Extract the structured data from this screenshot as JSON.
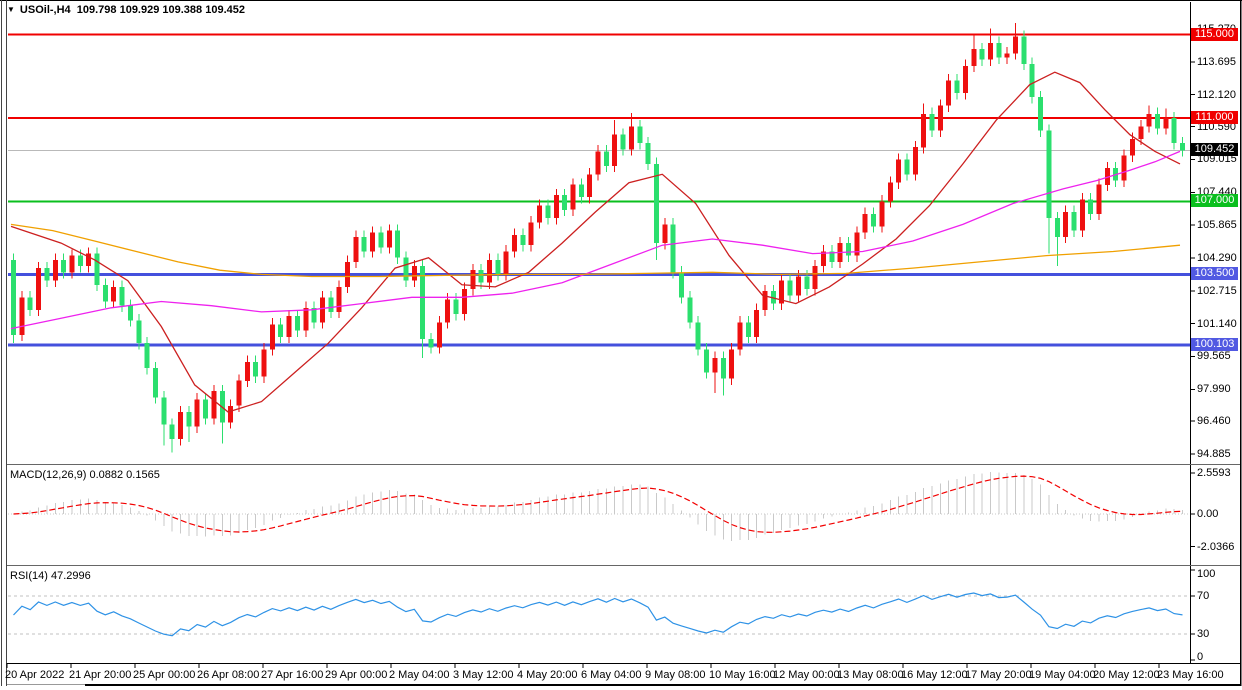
{
  "header": {
    "glyph": "▼",
    "text": "USOil-,H4  109.798 109.929 109.388 109.452"
  },
  "indicators": {
    "macd_label": "MACD(12,26,9) 0.0882 0.1565",
    "rsi_label": "RSI(14) 47.2996"
  },
  "price_axis": {
    "ticks": [
      {
        "label": "115.270",
        "value": 115.27
      },
      {
        "label": "113.695",
        "value": 113.695
      },
      {
        "label": "112.120",
        "value": 112.12
      },
      {
        "label": "110.590",
        "value": 110.59
      },
      {
        "label": "109.015",
        "value": 109.015
      },
      {
        "label": "107.440",
        "value": 107.44
      },
      {
        "label": "105.865",
        "value": 105.865
      },
      {
        "label": "104.290",
        "value": 104.29
      },
      {
        "label": "102.715",
        "value": 102.715
      },
      {
        "label": "101.140",
        "value": 101.14
      },
      {
        "label": "99.565",
        "value": 99.565
      },
      {
        "label": "97.990",
        "value": 97.99
      },
      {
        "label": "96.460",
        "value": 96.46
      },
      {
        "label": "94.885",
        "value": 94.885
      }
    ],
    "badges": [
      {
        "label": "115.000",
        "price": 115.0,
        "bg": "#F00000"
      },
      {
        "label": "111.000",
        "price": 111.0,
        "bg": "#F00000"
      },
      {
        "label": "109.452",
        "price": 109.452,
        "bg": "#000000"
      },
      {
        "label": "107.000",
        "price": 107.0,
        "bg": "#0ABF1E"
      },
      {
        "label": "103.500",
        "price": 103.5,
        "bg": "#5159E2"
      },
      {
        "label": "100.103",
        "price": 100.103,
        "bg": "#5159E2"
      }
    ]
  },
  "macd_axis": {
    "ticks": [
      {
        "label": "2.5593",
        "value": 2.5593
      },
      {
        "label": "0.00",
        "value": 0
      },
      {
        "label": "-2.0366",
        "value": -2.0366
      }
    ]
  },
  "rsi_axis": {
    "ticks": [
      {
        "label": "100",
        "value": 100
      },
      {
        "label": "70",
        "value": 70
      },
      {
        "label": "30",
        "value": 30
      },
      {
        "label": "0",
        "value": 0
      }
    ]
  },
  "time_axis": {
    "labels": [
      "20 Apr 2022",
      "21 Apr 20:00",
      "25 Apr 00:00",
      "26 Apr 08:00",
      "27 Apr 16:00",
      "29 Apr 00:00",
      "2 May 04:00",
      "3 May 12:00",
      "4 May 20:00",
      "6 May 04:00",
      "9 May 08:00",
      "10 May 16:00",
      "12 May 00:00",
      "13 May 08:00",
      "16 May 12:00",
      "17 May 20:00",
      "19 May 04:00",
      "20 May 12:00",
      "23 May 16:00"
    ]
  },
  "chart_data": {
    "type": "candlestick",
    "symbol": "USOil-",
    "period": "H4",
    "title": "USOil-,H4",
    "ohlc_display": {
      "open": 109.798,
      "high": 109.929,
      "low": 109.388,
      "close": 109.452
    },
    "current_price": 109.452,
    "ylim": [
      94.885,
      115.27
    ],
    "grid": false,
    "colors": {
      "up_candle": "#EE1010",
      "down_candle": "#2BDF6E",
      "ma_fast": "#CC2020",
      "ma_mid": "#EE22EE",
      "ma_slow": "#F0A000",
      "level_red": "#F00000",
      "level_green": "#0ABF1E",
      "level_blue": "#4450DD",
      "current_line": "#B9B9B9",
      "macd_bar": "#C9C9C9",
      "macd_signal": "#F20000",
      "rsi_line": "#2E92E6"
    },
    "hlines": [
      {
        "price": 115.0,
        "color": "#F00000",
        "w": 2
      },
      {
        "price": 111.0,
        "color": "#F00000",
        "w": 2
      },
      {
        "price": 107.0,
        "color": "#0ABF1E",
        "w": 2
      },
      {
        "price": 103.5,
        "color": "#4450DD",
        "w": 3
      },
      {
        "price": 100.103,
        "color": "#4450DD",
        "w": 3
      }
    ],
    "first_open": 104.2,
    "wick": 0.3,
    "closes": [
      100.6,
      102.4,
      101.8,
      103.8,
      103.2,
      104.2,
      103.6,
      104.4,
      103.9,
      104.5,
      103.0,
      102.2,
      102.9,
      102.0,
      101.3,
      100.2,
      99.0,
      97.6,
      96.3,
      95.6,
      96.9,
      96.2,
      97.5,
      96.6,
      97.9,
      96.4,
      97.2,
      98.4,
      99.3,
      98.6,
      99.9,
      101.1,
      100.5,
      101.5,
      100.8,
      101.9,
      101.2,
      102.4,
      101.7,
      102.9,
      104.1,
      105.3,
      104.6,
      105.5,
      104.8,
      105.6,
      104.3,
      103.2,
      103.9,
      100.4,
      100.0,
      101.2,
      102.3,
      101.6,
      102.8,
      103.7,
      103.1,
      104.2,
      103.5,
      104.6,
      105.4,
      104.9,
      106.0,
      106.8,
      106.2,
      107.3,
      106.6,
      107.8,
      107.2,
      108.3,
      109.4,
      108.7,
      110.2,
      109.5,
      110.6,
      109.8,
      108.8,
      105.0,
      105.9,
      103.6,
      102.4,
      101.2,
      99.9,
      98.8,
      99.5,
      98.5,
      99.9,
      101.2,
      100.5,
      101.8,
      102.7,
      102.1,
      103.2,
      102.5,
      103.4,
      102.8,
      103.9,
      104.6,
      104.1,
      105.0,
      104.4,
      105.5,
      106.4,
      105.8,
      107.0,
      107.9,
      109.0,
      108.3,
      109.6,
      111.2,
      110.4,
      111.6,
      112.8,
      112.2,
      113.5,
      114.3,
      113.8,
      114.6,
      113.9,
      114.1,
      114.9,
      113.6,
      112.0,
      110.4,
      106.2,
      105.3,
      106.5,
      105.6,
      107.1,
      106.4,
      107.8,
      108.6,
      108.0,
      109.2,
      110.0,
      110.6,
      111.2,
      110.5,
      111.0,
      109.8,
      109.452
    ],
    "wick_overrides": {
      "0": {
        "h": 104.5,
        "l": 100.2
      },
      "18": {
        "l": 95.3
      },
      "19": {
        "l": 94.95
      },
      "21": {
        "l": 95.45
      },
      "25": {
        "l": 95.4
      },
      "49": {
        "l": 99.5
      },
      "72": {
        "h": 110.9
      },
      "74": {
        "h": 111.25
      },
      "77": {
        "l": 104.2
      },
      "84": {
        "l": 97.8
      },
      "85": {
        "l": 97.7
      },
      "109": {
        "h": 111.7
      },
      "115": {
        "h": 115.0
      },
      "117": {
        "h": 115.3
      },
      "120": {
        "h": 115.55
      },
      "124": {
        "l": 104.5
      },
      "125": {
        "l": 103.9
      },
      "136": {
        "h": 111.6
      },
      "138": {
        "h": 111.45
      }
    },
    "ma_fast_points": [
      [
        0,
        105.8
      ],
      [
        6,
        105.0
      ],
      [
        10,
        104.2
      ],
      [
        14,
        103.2
      ],
      [
        18,
        101.0
      ],
      [
        22,
        98.2
      ],
      [
        26,
        96.9
      ],
      [
        30,
        97.4
      ],
      [
        34,
        98.8
      ],
      [
        38,
        100.2
      ],
      [
        42,
        101.9
      ],
      [
        46,
        103.8
      ],
      [
        50,
        104.3
      ],
      [
        54,
        103.0
      ],
      [
        58,
        102.9
      ],
      [
        62,
        103.6
      ],
      [
        66,
        105.0
      ],
      [
        70,
        106.5
      ],
      [
        74,
        107.9
      ],
      [
        78,
        108.3
      ],
      [
        82,
        106.9
      ],
      [
        86,
        104.4
      ],
      [
        90,
        102.5
      ],
      [
        94,
        102.1
      ],
      [
        98,
        102.9
      ],
      [
        102,
        104.0
      ],
      [
        106,
        105.2
      ],
      [
        110,
        106.8
      ],
      [
        114,
        108.8
      ],
      [
        118,
        110.9
      ],
      [
        122,
        112.6
      ],
      [
        125,
        113.2
      ],
      [
        128,
        112.7
      ],
      [
        131,
        111.4
      ],
      [
        134,
        110.2
      ],
      [
        137,
        109.4
      ],
      [
        140,
        108.8
      ]
    ],
    "ma_mid_points": [
      [
        0,
        100.9
      ],
      [
        6,
        101.4
      ],
      [
        12,
        101.9
      ],
      [
        18,
        102.2
      ],
      [
        24,
        102.0
      ],
      [
        30,
        101.7
      ],
      [
        36,
        101.8
      ],
      [
        42,
        102.1
      ],
      [
        48,
        102.4
      ],
      [
        54,
        102.4
      ],
      [
        60,
        102.6
      ],
      [
        66,
        103.1
      ],
      [
        72,
        104.0
      ],
      [
        78,
        104.9
      ],
      [
        84,
        105.2
      ],
      [
        90,
        104.9
      ],
      [
        96,
        104.5
      ],
      [
        102,
        104.6
      ],
      [
        108,
        105.1
      ],
      [
        114,
        105.9
      ],
      [
        120,
        106.9
      ],
      [
        126,
        107.6
      ],
      [
        130,
        108.0
      ],
      [
        134,
        108.5
      ],
      [
        137,
        108.9
      ],
      [
        140,
        109.4
      ]
    ],
    "ma_slow_points": [
      [
        0,
        105.9
      ],
      [
        5,
        105.6
      ],
      [
        10,
        105.1
      ],
      [
        15,
        104.6
      ],
      [
        20,
        104.1
      ],
      [
        25,
        103.7
      ],
      [
        30,
        103.5
      ],
      [
        36,
        103.4
      ],
      [
        44,
        103.4
      ],
      [
        52,
        103.45
      ],
      [
        60,
        103.5
      ],
      [
        68,
        103.5
      ],
      [
        76,
        103.55
      ],
      [
        84,
        103.6
      ],
      [
        92,
        103.5
      ],
      [
        100,
        103.55
      ],
      [
        108,
        103.8
      ],
      [
        116,
        104.1
      ],
      [
        124,
        104.4
      ],
      [
        132,
        104.6
      ],
      [
        140,
        104.9
      ]
    ],
    "macd": {
      "params": "12,26,9",
      "value": 0.0882,
      "signal_value": 0.1565,
      "axis_max": 2.5593,
      "axis_min": -2.0366
    },
    "rsi": {
      "period": 14,
      "value": 47.2996,
      "levels": [
        70,
        30
      ],
      "range": [
        0,
        100
      ]
    }
  }
}
